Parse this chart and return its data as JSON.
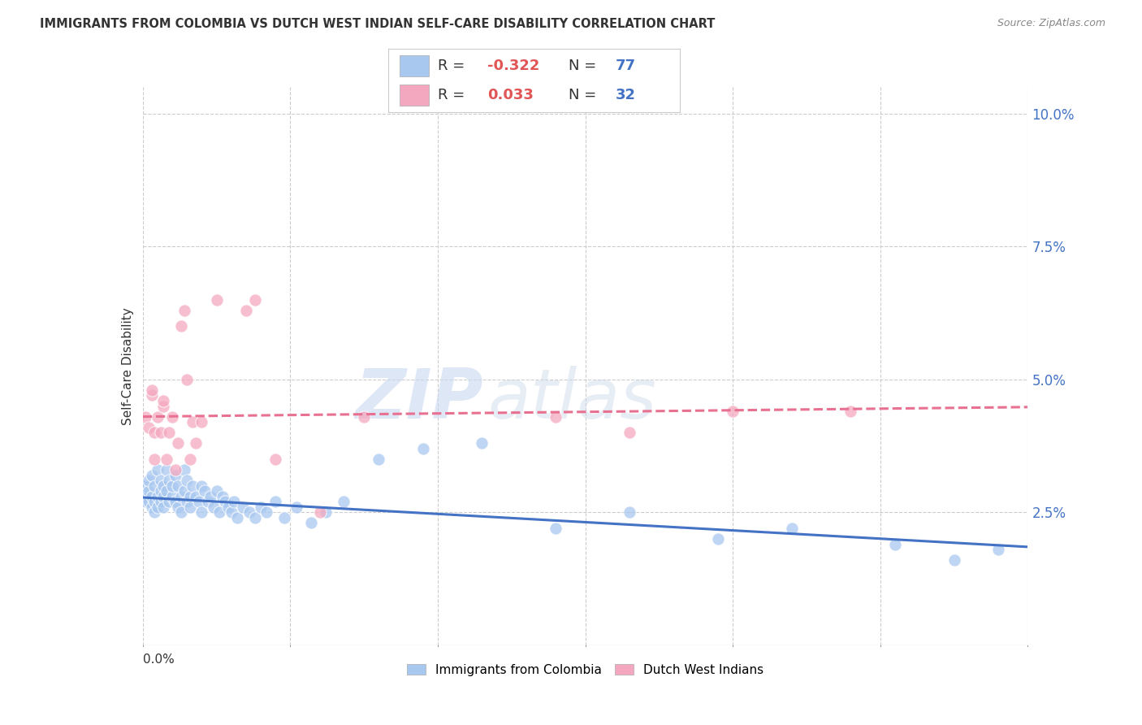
{
  "title": "IMMIGRANTS FROM COLOMBIA VS DUTCH WEST INDIAN SELF-CARE DISABILITY CORRELATION CHART",
  "source": "Source: ZipAtlas.com",
  "ylabel": "Self-Care Disability",
  "xlim": [
    0.0,
    0.3
  ],
  "ylim": [
    0.0,
    0.105
  ],
  "yticks_right": [
    0.025,
    0.05,
    0.075,
    0.1
  ],
  "yticklabels_right": [
    "2.5%",
    "5.0%",
    "7.5%",
    "10.0%"
  ],
  "colombia_color": "#a8c8f0",
  "dutch_color": "#f4a8c0",
  "colombia_line_color": "#4472c4",
  "dutch_line_color": "#e87090",
  "colombia_R": -0.322,
  "colombia_N": 77,
  "dutch_R": 0.033,
  "dutch_N": 32,
  "legend_label_colombia": "Immigrants from Colombia",
  "legend_label_dutch": "Dutch West Indians",
  "watermark_zip": "ZIP",
  "watermark_atlas": "atlas",
  "background_color": "#ffffff",
  "grid_color": "#cccccc",
  "colombia_scatter_x": [
    0.001,
    0.001,
    0.001,
    0.002,
    0.002,
    0.002,
    0.003,
    0.003,
    0.003,
    0.004,
    0.004,
    0.004,
    0.005,
    0.005,
    0.005,
    0.006,
    0.006,
    0.006,
    0.007,
    0.007,
    0.007,
    0.008,
    0.008,
    0.009,
    0.009,
    0.01,
    0.01,
    0.011,
    0.011,
    0.012,
    0.012,
    0.013,
    0.013,
    0.014,
    0.014,
    0.015,
    0.015,
    0.016,
    0.016,
    0.017,
    0.018,
    0.019,
    0.02,
    0.02,
    0.021,
    0.022,
    0.023,
    0.024,
    0.025,
    0.026,
    0.027,
    0.028,
    0.029,
    0.03,
    0.031,
    0.032,
    0.034,
    0.036,
    0.038,
    0.04,
    0.042,
    0.045,
    0.048,
    0.052,
    0.057,
    0.062,
    0.068,
    0.08,
    0.095,
    0.115,
    0.14,
    0.165,
    0.195,
    0.22,
    0.255,
    0.275,
    0.29
  ],
  "colombia_scatter_y": [
    0.028,
    0.027,
    0.03,
    0.027,
    0.029,
    0.031,
    0.026,
    0.028,
    0.032,
    0.027,
    0.03,
    0.025,
    0.028,
    0.033,
    0.026,
    0.029,
    0.027,
    0.031,
    0.028,
    0.03,
    0.026,
    0.029,
    0.033,
    0.027,
    0.031,
    0.028,
    0.03,
    0.027,
    0.032,
    0.026,
    0.03,
    0.028,
    0.025,
    0.029,
    0.033,
    0.027,
    0.031,
    0.028,
    0.026,
    0.03,
    0.028,
    0.027,
    0.03,
    0.025,
    0.029,
    0.027,
    0.028,
    0.026,
    0.029,
    0.025,
    0.028,
    0.027,
    0.026,
    0.025,
    0.027,
    0.024,
    0.026,
    0.025,
    0.024,
    0.026,
    0.025,
    0.027,
    0.024,
    0.026,
    0.023,
    0.025,
    0.027,
    0.035,
    0.037,
    0.038,
    0.022,
    0.025,
    0.02,
    0.022,
    0.019,
    0.016,
    0.018
  ],
  "dutch_scatter_x": [
    0.001,
    0.002,
    0.003,
    0.003,
    0.004,
    0.004,
    0.005,
    0.006,
    0.007,
    0.007,
    0.008,
    0.009,
    0.01,
    0.011,
    0.012,
    0.013,
    0.014,
    0.015,
    0.016,
    0.017,
    0.018,
    0.02,
    0.025,
    0.035,
    0.038,
    0.045,
    0.06,
    0.075,
    0.14,
    0.165,
    0.2,
    0.24
  ],
  "dutch_scatter_y": [
    0.043,
    0.041,
    0.047,
    0.048,
    0.035,
    0.04,
    0.043,
    0.04,
    0.045,
    0.046,
    0.035,
    0.04,
    0.043,
    0.033,
    0.038,
    0.06,
    0.063,
    0.05,
    0.035,
    0.042,
    0.038,
    0.042,
    0.065,
    0.063,
    0.065,
    0.035,
    0.025,
    0.043,
    0.043,
    0.04,
    0.044,
    0.044
  ]
}
